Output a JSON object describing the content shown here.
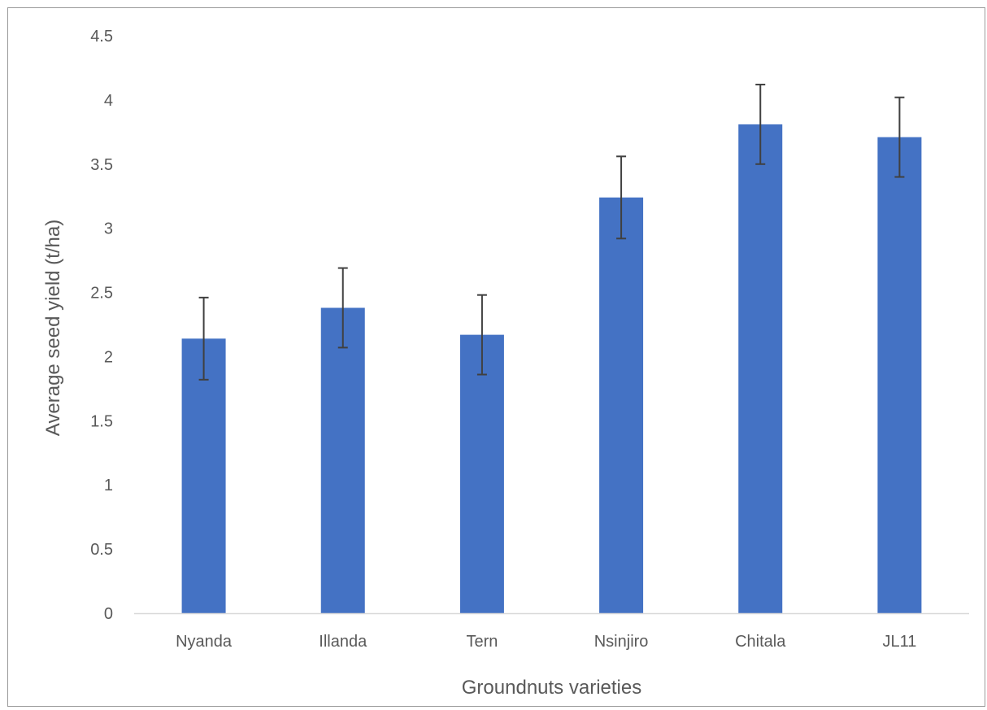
{
  "chart_data": {
    "type": "bar",
    "title": "",
    "xlabel": "Groundnuts varieties",
    "ylabel": "Average seed yield (t/ha)",
    "categories": [
      "Nyanda",
      "Illanda",
      "Tern",
      "Nsinjiro",
      "Chitala",
      "JL11"
    ],
    "values": [
      2.14,
      2.38,
      2.17,
      3.24,
      3.81,
      3.71
    ],
    "error": [
      0.32,
      0.31,
      0.31,
      0.32,
      0.31,
      0.31
    ],
    "ylim": [
      0,
      4.5
    ],
    "yticks": [
      "0",
      "0.5",
      "1",
      "1.5",
      "2",
      "2.5",
      "3",
      "3.5",
      "4",
      "4.5"
    ],
    "grid": false,
    "legend": "none",
    "colors": {
      "bar": "#4472c4",
      "error_bar": "#404040",
      "axis": "#d9d9d9",
      "text": "#595959"
    }
  }
}
